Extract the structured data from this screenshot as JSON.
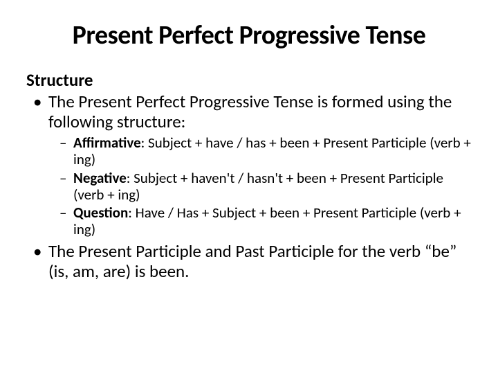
{
  "title": "Present Perfect Progressive Tense",
  "heading": "Structure",
  "bullet1": "The Present Perfect Progressive Tense is formed using the following structure:",
  "sub": [
    {
      "label": "Affirmative",
      "rest": ": Subject + have / has + been + Present Participle (verb + ing)"
    },
    {
      "label": "Negative",
      "rest": ": Subject + haven't / hasn't + been + Present Participle (verb + ing)"
    },
    {
      "label": "Question",
      "rest": ": Have / Has + Subject + been + Present Participle (verb + ing)"
    }
  ],
  "bullet2": "The Present Participle and Past Participle for the verb “be” (is, am, are) is been.",
  "colors": {
    "background": "#ffffff",
    "text": "#000000"
  },
  "typography": {
    "title_fontsize": 38,
    "heading_fontsize": 25,
    "body_fontsize": 25,
    "sub_fontsize": 21,
    "font_family": "Calibri"
  }
}
